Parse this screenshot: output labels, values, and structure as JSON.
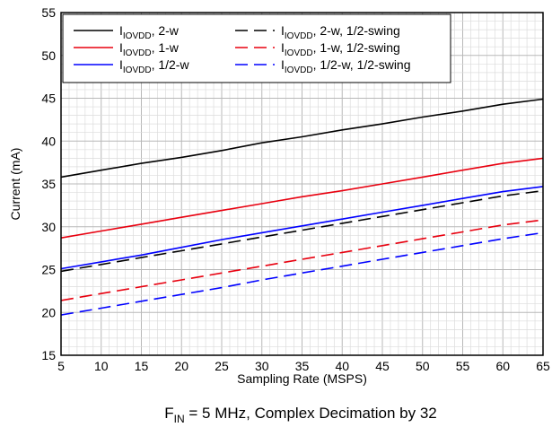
{
  "chart_data": {
    "type": "line",
    "xlabel": "Sampling Rate (MSPS)",
    "ylabel": "Current (mA)",
    "xlim": [
      5,
      65
    ],
    "ylim": [
      15,
      55
    ],
    "x_ticks": [
      5,
      10,
      15,
      20,
      25,
      30,
      35,
      40,
      45,
      50,
      55,
      60,
      65
    ],
    "y_ticks": [
      15,
      20,
      25,
      30,
      35,
      40,
      45,
      50,
      55
    ],
    "grid": true,
    "legend_position": "top-left",
    "caption": "F_IN = 5 MHz, Complex Decimation by 32",
    "caption_parts": {
      "main": "F",
      "sub": "IN",
      "rest": " = 5 MHz, Complex Decimation by 32"
    },
    "x": [
      5,
      10,
      15,
      20,
      25,
      30,
      35,
      40,
      45,
      50,
      55,
      60,
      65
    ],
    "series": [
      {
        "name": "IIOVDD, 2-w",
        "label_main": "I",
        "label_sub": "IOVDD",
        "label_rest": ", 2-w",
        "color": "#000000",
        "dash": "solid",
        "values": [
          35.8,
          36.6,
          37.4,
          38.1,
          38.9,
          39.8,
          40.5,
          41.3,
          42.0,
          42.8,
          43.5,
          44.3,
          44.9
        ]
      },
      {
        "name": "IIOVDD, 1-w",
        "label_main": "I",
        "label_sub": "IOVDD",
        "label_rest": ", 1-w",
        "color": "#e8000f",
        "dash": "solid",
        "values": [
          28.7,
          29.5,
          30.3,
          31.1,
          31.9,
          32.7,
          33.5,
          34.2,
          35.0,
          35.8,
          36.6,
          37.4,
          38.0
        ]
      },
      {
        "name": "IIOVDD, 1/2-w",
        "label_main": "I",
        "label_sub": "IOVDD",
        "label_rest": ", 1/2-w",
        "color": "#0000ff",
        "dash": "solid",
        "values": [
          25.1,
          25.9,
          26.7,
          27.6,
          28.5,
          29.3,
          30.1,
          30.9,
          31.7,
          32.5,
          33.3,
          34.1,
          34.7
        ]
      },
      {
        "name": "IIOVDD, 2-w, 1/2-swing",
        "label_main": "I",
        "label_sub": "IOVDD",
        "label_rest": ", 2-w, 1/2-swing",
        "color": "#000000",
        "dash": "dashed",
        "values": [
          24.8,
          25.6,
          26.4,
          27.2,
          28.0,
          28.8,
          29.6,
          30.4,
          31.2,
          32.0,
          32.8,
          33.6,
          34.2
        ]
      },
      {
        "name": "IIOVDD, 1-w, 1/2-swing",
        "label_main": "I",
        "label_sub": "IOVDD",
        "label_rest": ", 1-w, 1/2-swing",
        "color": "#e8000f",
        "dash": "dashed",
        "values": [
          21.4,
          22.2,
          23.0,
          23.8,
          24.6,
          25.4,
          26.2,
          27.0,
          27.8,
          28.6,
          29.4,
          30.2,
          30.8
        ]
      },
      {
        "name": "IIOVDD, 1/2-w, 1/2-swing",
        "label_main": "I",
        "label_sub": "IOVDD",
        "label_rest": ", 1/2-w, 1/2-swing",
        "color": "#0000ff",
        "dash": "dashed",
        "values": [
          19.7,
          20.5,
          21.3,
          22.1,
          22.9,
          23.8,
          24.6,
          25.4,
          26.2,
          27.0,
          27.8,
          28.6,
          29.3
        ]
      }
    ]
  }
}
